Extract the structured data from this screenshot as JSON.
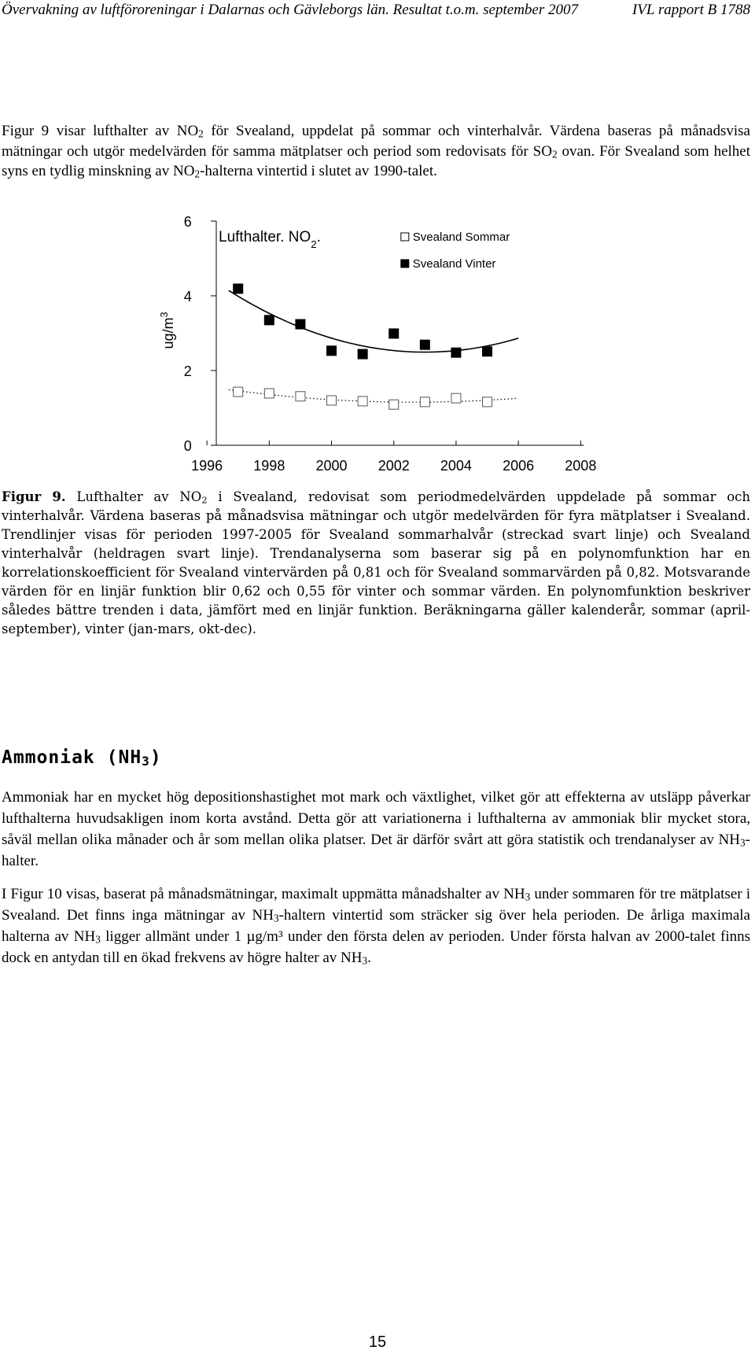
{
  "header": {
    "left": "Övervakning av luftföroreningar i Dalarnas och Gävleborgs län. Resultat t.o.m. september 2007",
    "right": "IVL rapport B 1788"
  },
  "paragraph_1": [
    "Figur 9 visar lufthalter av NO",
    "2",
    " för Svealand, uppdelat på sommar och vinterhalvår. Värdena baseras på månadsvisa mätningar och utgör medelvärden för samma mätplatser och period som redovisats för SO",
    "2",
    " ovan. För Svealand som helhet syns en tydlig minskning av NO",
    "2",
    "-halterna vintertid i slutet av 1990-talet."
  ],
  "chart_data": {
    "type": "scatter",
    "title": [
      "Lufthalter. NO",
      "2",
      "."
    ],
    "ylabel": [
      "ug/m",
      "3"
    ],
    "x": [
      1997,
      1998,
      1999,
      2000,
      2001,
      2002,
      2003,
      2004,
      2005
    ],
    "series": [
      {
        "name": "Svealand Sommar",
        "color": "#ffffff",
        "trend": "dotted",
        "values": [
          1.43,
          1.39,
          1.31,
          1.2,
          1.18,
          1.09,
          1.16,
          1.26,
          1.16
        ]
      },
      {
        "name": "Svealand Vinter",
        "color": "#000000",
        "trend": "solid",
        "values": [
          4.19,
          3.35,
          3.24,
          2.53,
          2.44,
          2.99,
          2.69,
          2.48,
          2.51
        ]
      }
    ],
    "xlim": [
      1996.3,
      2008.1
    ],
    "xticks": [
      1996,
      1998,
      2000,
      2002,
      2004,
      2006,
      2008
    ],
    "ylim": [
      0,
      6
    ],
    "yticks": [
      0,
      2,
      4,
      6
    ]
  },
  "caption": {
    "label": "Figur 9.",
    "text": [
      " Lufthalter av NO",
      "2",
      " i Svealand, redovisat som periodmedelvärden uppdelade på sommar och vinterhalvår. Värdena baseras på månadsvisa mätningar och utgör medelvärden för fyra mätplatser i Svealand. Trendlinjer visas för perioden 1997-2005 för Svealand sommarhalvår (streckad svart linje) och Svealand vinterhalvår (heldragen svart linje). Trendanalyserna som baserar sig på en polynomfunktion har en korrelationskoefficient för Svealand vintervärden på 0,81 och för Svealand sommarvärden på 0,82. Motsvarande värden för en linjär funktion blir 0,62 och 0,55 för vinter och sommar värden. En polynomfunktion beskriver således bättre trenden i data, jämfört med en linjär funktion. Beräkningarna gäller kalenderår, sommar (april-september), vinter (jan-mars, okt-dec)."
    ]
  },
  "heading": [
    "Ammoniak (NH",
    "3",
    ")"
  ],
  "paragraph_2": [
    "Ammoniak har en mycket hög depositionshastighet mot mark och växtlighet, vilket gör att effekterna av utsläpp påverkar lufthalterna huvudsakligen inom korta avstånd. Detta gör att variationerna i lufthalterna av ammoniak blir mycket stora, såväl mellan olika månader och år som mellan olika platser. Det är därför svårt att göra statistik och trendanalyser av NH",
    "3",
    "-halter."
  ],
  "paragraph_3": [
    "I Figur 10 visas, baserat på månadsmätningar, maximalt uppmätta månadshalter av NH",
    "3",
    " under sommaren för tre mätplatser i Svealand. Det finns inga mätningar av NH",
    "3",
    "-haltern vintertid som sträcker sig över hela perioden. De årliga maximala halterna av NH",
    "3",
    " ligger allmänt under 1 µg/m³ under den första delen av perioden. Under första halvan av 2000-talet finns dock en antydan till en ökad frekvens av högre halter av NH",
    "3",
    "."
  ],
  "page_number": "15"
}
